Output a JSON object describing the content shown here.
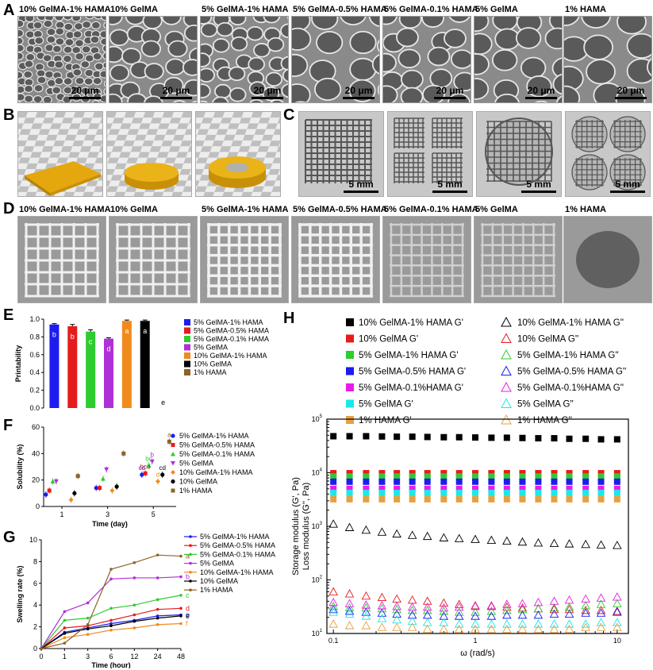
{
  "panel_labels": {
    "a": "A",
    "b": "B",
    "c": "C",
    "d": "D",
    "e": "E",
    "f": "F",
    "g": "G",
    "h": "H"
  },
  "sem_titles": [
    "10% GelMA-1% HAMA",
    "10% GelMA",
    "5% GelMA-1% HAMA",
    "5% GelMA-0.5% HAMA",
    "5% GelMA-0.1% HAMA",
    "5% GelMA",
    "1% HAMA"
  ],
  "sem_scale": "20 μm",
  "c_scale": "5 mm",
  "d_titles": [
    "10% GelMA-1% HAMA",
    "10% GelMA",
    "5% GelMA-1% HAMA",
    "5% GelMA-0.5% HAMA",
    "5% GelMA-0.1% HAMA",
    "5% GelMA",
    "1% HAMA"
  ],
  "colors": {
    "5% GelMA-1% HAMA": "#1c1cf0",
    "5% GelMA-0.5% HAMA": "#e51c1c",
    "5% GelMA-0.1% HAMA": "#2ecc2e",
    "5% GelMA": "#b030d8",
    "10% GelMA-1% HAMA": "#f08a1c",
    "10% GelMA": "#000000",
    "1% HAMA": "#8c6428"
  },
  "chart_data": [
    {
      "panel": "E",
      "type": "bar",
      "ylabel": "Printability",
      "ylim": [
        0,
        1.0
      ],
      "yticks": [
        "0.0",
        "0.2",
        "0.4",
        "0.6",
        "0.8",
        "1.0"
      ],
      "categories": [
        "5% GelMA-1% HAMA",
        "5% GelMA-0.5% HAMA",
        "5% GelMA-0.1% HAMA",
        "5% GelMA",
        "10% GelMA-1% HAMA",
        "10% GelMA",
        "1% HAMA"
      ],
      "values": [
        0.94,
        0.92,
        0.86,
        0.78,
        0.98,
        0.98,
        0
      ],
      "errors": [
        0.01,
        0.02,
        0.02,
        0.01,
        0.01,
        0.01,
        0
      ],
      "letters": [
        "b",
        "b",
        "c",
        "d",
        "a",
        "a",
        "e"
      ],
      "legend": [
        "5% GelMA-1% HAMA",
        "5% GelMA-0.5% HAMA",
        "5% GelMA-0.1% HAMA",
        "5% GelMA",
        "10% GelMA-1% HAMA",
        "10% GelMA",
        "1% HAMA"
      ]
    },
    {
      "panel": "F",
      "type": "scatter",
      "xlabel": "Time (day)",
      "ylabel": "Solubility (%)",
      "ylim": [
        0,
        60
      ],
      "xlim": [
        0,
        5.8
      ],
      "xticks": [
        "1",
        "3",
        "5"
      ],
      "yticks": [
        "0",
        "20",
        "40",
        "60"
      ],
      "series": [
        {
          "name": "5% GelMA-1% HAMA",
          "marker": "circle",
          "x": [
            0.1,
            2.3,
            4.3
          ],
          "y": [
            9,
            14,
            24
          ]
        },
        {
          "name": "5% GelMA-0.5% HAMA",
          "marker": "square",
          "x": [
            0.25,
            2.45,
            4.45
          ],
          "y": [
            12,
            14,
            25
          ]
        },
        {
          "name": "5% GelMA-0.1% HAMA",
          "marker": "triangle",
          "x": [
            0.4,
            2.6,
            4.6
          ],
          "y": [
            19,
            21,
            31
          ]
        },
        {
          "name": "5% GelMA",
          "marker": "triangle-down",
          "x": [
            0.55,
            2.75,
            4.75
          ],
          "y": [
            19,
            28,
            34
          ]
        },
        {
          "name": "10% GelMA-1% HAMA",
          "marker": "diamond",
          "x": [
            1.2,
            3.0,
            5.0
          ],
          "y": [
            5,
            12,
            19
          ]
        },
        {
          "name": "10% GelMA",
          "marker": "circle",
          "x": [
            1.35,
            3.2,
            5.2
          ],
          "y": [
            10,
            15,
            24
          ]
        },
        {
          "name": "1% HAMA",
          "marker": "square",
          "x": [
            1.5,
            3.5,
            5.5
          ],
          "y": [
            23,
            40,
            49
          ]
        }
      ],
      "day5_letters": [
        {
          "text": "cd",
          "series": "5% GelMA-1% HAMA"
        },
        {
          "text": "bcd",
          "series": "5% GelMA-0.5% HAMA"
        },
        {
          "text": "bc",
          "series": "5% GelMA-0.1% HAMA"
        },
        {
          "text": "b",
          "series": "5% GelMA"
        },
        {
          "text": "d",
          "series": "10% GelMA-1% HAMA"
        },
        {
          "text": "cd",
          "series": "10% GelMA"
        },
        {
          "text": "a",
          "series": "1% HAMA"
        }
      ],
      "legend": [
        "5% GelMA-1% HAMA",
        "5% GelMA-0.5% HAMA",
        "5% GelMA-0.1% HAMA",
        "5% GelMA",
        "10% GelMA-1% HAMA",
        "10% GelMA",
        "1% HAMA"
      ]
    },
    {
      "panel": "G",
      "type": "line",
      "xlabel": "Time (hour)",
      "ylabel": "Swelling rate (%)",
      "ylim": [
        0,
        10
      ],
      "categories": [
        "0",
        "1",
        "3",
        "6",
        "12",
        "24",
        "48"
      ],
      "yticks": [
        "0",
        "2",
        "4",
        "6",
        "8",
        "10"
      ],
      "series": [
        {
          "name": "5% GelMA-1% HAMA",
          "values": [
            0,
            1.5,
            1.9,
            2.3,
            2.6,
            3.0,
            3.1
          ],
          "letter": "e"
        },
        {
          "name": "5% GelMA-0.5% HAMA",
          "values": [
            0,
            1.9,
            2.1,
            2.6,
            3.1,
            3.6,
            3.7
          ],
          "letter": "d"
        },
        {
          "name": "5% GelMA-0.1% HAMA",
          "values": [
            0,
            2.6,
            2.8,
            3.7,
            4.0,
            4.5,
            4.9
          ],
          "letter": "c"
        },
        {
          "name": "5% GelMA",
          "values": [
            0,
            3.4,
            4.2,
            6.4,
            6.5,
            6.5,
            6.6
          ],
          "letter": "b"
        },
        {
          "name": "10% GelMA-1% HAMA",
          "values": [
            0,
            1.0,
            1.3,
            1.7,
            1.9,
            2.2,
            2.3
          ],
          "letter": "f"
        },
        {
          "name": "10% GelMA",
          "values": [
            0,
            1.4,
            1.8,
            2.1,
            2.5,
            2.8,
            3.0
          ],
          "letter": "e"
        },
        {
          "name": "1% HAMA",
          "values": [
            0,
            0.5,
            2.2,
            7.3,
            7.9,
            8.6,
            8.5
          ],
          "letter": "a"
        }
      ],
      "legend": [
        "5% GelMA-1% HAMA",
        "5% GelMA-0.5% HAMA",
        "5% GelMA-0.1% HAMA",
        "5% GelMA",
        "10% GelMA-1% HAMA",
        "10% GelMA",
        "1% HAMA"
      ]
    },
    {
      "panel": "H",
      "type": "scatter",
      "xlabel": "ω (rad/s)",
      "ylabel": "Storage modulus (G', Pa)",
      "ylabel2": "Loss modulus (G'', Pa)",
      "xscale": "log",
      "yscale": "log",
      "xlim": [
        0.09,
        12
      ],
      "ylim": [
        10,
        100000
      ],
      "xticks": [
        "0.1",
        "1",
        "10"
      ],
      "legend_left": [
        "10% GelMA-1% HAMA G'",
        "10% GelMA G'",
        "5% GelMA-1% HAMA G'",
        "5% GelMA-0.5% HAMA G'",
        "5% GelMA-0.1%HAMA G'",
        "5% GelMA G'",
        "1% HAMA G'"
      ],
      "legend_right": [
        "10% GelMA-1% HAMA G''",
        "10% GelMA G''",
        "5% GelMA-1% HAMA G''",
        "5% GelMA-0.5% HAMA G''",
        "5% GelMA-0.1%HAMA G''",
        "5% GelMA G''",
        "1% HAMA G''"
      ],
      "omega": [
        0.1,
        0.13,
        0.17,
        0.22,
        0.28,
        0.36,
        0.46,
        0.6,
        0.77,
        1.0,
        1.3,
        1.67,
        2.15,
        2.78,
        3.6,
        4.6,
        6.0,
        7.7,
        10
      ],
      "series": [
        {
          "name": "10% GelMA-1% HAMA G'",
          "color": "#000000",
          "filled": true,
          "values": [
            48000,
            48000,
            48000,
            47500,
            47000,
            47000,
            46500,
            46000,
            46000,
            45500,
            45000,
            45000,
            44500,
            44000,
            44000,
            43000,
            43000,
            42000,
            42000
          ]
        },
        {
          "name": "10% GelMA G'",
          "color": "#e51c1c",
          "filled": true,
          "values": [
            9800,
            9800,
            9800,
            9800,
            9800,
            9800,
            9800,
            9800,
            9800,
            9800,
            9800,
            9800,
            9800,
            9800,
            9800,
            9800,
            9800,
            9800,
            9800
          ]
        },
        {
          "name": "5% GelMA-1% HAMA G'",
          "color": "#2ecc2e",
          "filled": true,
          "values": [
            8500,
            8500,
            8500,
            8500,
            8500,
            8500,
            8500,
            8500,
            8500,
            8500,
            8500,
            8500,
            8500,
            8500,
            8500,
            8500,
            8500,
            8500,
            8500
          ]
        },
        {
          "name": "5% GelMA-0.5% HAMA G'",
          "color": "#1c1cf0",
          "filled": true,
          "values": [
            6800,
            6800,
            6800,
            6800,
            6800,
            6800,
            6800,
            6800,
            6800,
            6800,
            6800,
            6800,
            6800,
            6800,
            6800,
            6800,
            6800,
            6800,
            6800
          ]
        },
        {
          "name": "5% GelMA-0.1%HAMA G'",
          "color": "#e81ce8",
          "filled": true,
          "values": [
            5000,
            5000,
            5000,
            5000,
            5000,
            5000,
            5000,
            5000,
            5000,
            5000,
            5000,
            5000,
            5000,
            5000,
            5000,
            5000,
            5000,
            5000,
            5000
          ]
        },
        {
          "name": "5% GelMA G'",
          "color": "#1ce8e8",
          "filled": true,
          "values": [
            4200,
            4200,
            4200,
            4200,
            4200,
            4200,
            4200,
            4200,
            4200,
            4200,
            4200,
            4200,
            4200,
            4200,
            4200,
            4200,
            4200,
            4200,
            4200
          ]
        },
        {
          "name": "1% HAMA G'",
          "color": "#e8a040",
          "filled": true,
          "values": [
            3200,
            3200,
            3200,
            3200,
            3200,
            3200,
            3200,
            3200,
            3200,
            3200,
            3200,
            3200,
            3200,
            3200,
            3200,
            3200,
            3200,
            3200,
            3200
          ]
        },
        {
          "name": "10% GelMA-1% HAMA G''",
          "color": "#000000",
          "filled": false,
          "values": [
            1100,
            950,
            850,
            780,
            720,
            680,
            650,
            610,
            590,
            570,
            550,
            530,
            510,
            490,
            480,
            470,
            460,
            450,
            440
          ]
        },
        {
          "name": "10% GelMA G''",
          "color": "#e51c1c",
          "filled": false,
          "values": [
            60,
            55,
            50,
            47,
            44,
            42,
            40,
            37,
            35,
            33,
            32,
            31,
            30,
            29,
            28,
            28,
            27,
            27,
            26
          ]
        },
        {
          "name": "5% GelMA-1% HAMA G''",
          "color": "#2ecc2e",
          "filled": false,
          "values": [
            32,
            30,
            30,
            29,
            28,
            27,
            27,
            26,
            25,
            25,
            26,
            27,
            28,
            29,
            30,
            31,
            33,
            35,
            36
          ]
        },
        {
          "name": "5% GelMA-0.5% HAMA G''",
          "color": "#1c1cf0",
          "filled": false,
          "values": [
            28,
            26,
            25,
            24,
            23,
            22,
            22,
            21,
            21,
            21,
            21,
            22,
            22,
            22,
            23,
            23,
            24,
            24,
            25
          ]
        },
        {
          "name": "5% GelMA-0.1%HAMA G''",
          "color": "#e81ce8",
          "filled": false,
          "values": [
            38,
            36,
            34,
            33,
            32,
            31,
            31,
            30,
            31,
            32,
            33,
            35,
            36,
            38,
            40,
            42,
            44,
            46,
            48
          ]
        },
        {
          "name": "5% GelMA G''",
          "color": "#1ce8e8",
          "filled": false,
          "values": [
            25,
            23,
            21,
            19,
            18,
            17,
            16,
            16,
            15,
            15,
            15,
            15,
            15,
            15,
            15,
            15,
            15,
            16,
            16
          ]
        },
        {
          "name": "1% HAMA G''",
          "color": "#e8a040",
          "filled": false,
          "values": [
            15,
            14,
            14,
            13,
            13,
            13,
            12,
            12,
            12,
            12,
            12,
            12,
            12,
            12,
            12,
            12,
            13,
            13,
            13
          ]
        }
      ]
    }
  ]
}
